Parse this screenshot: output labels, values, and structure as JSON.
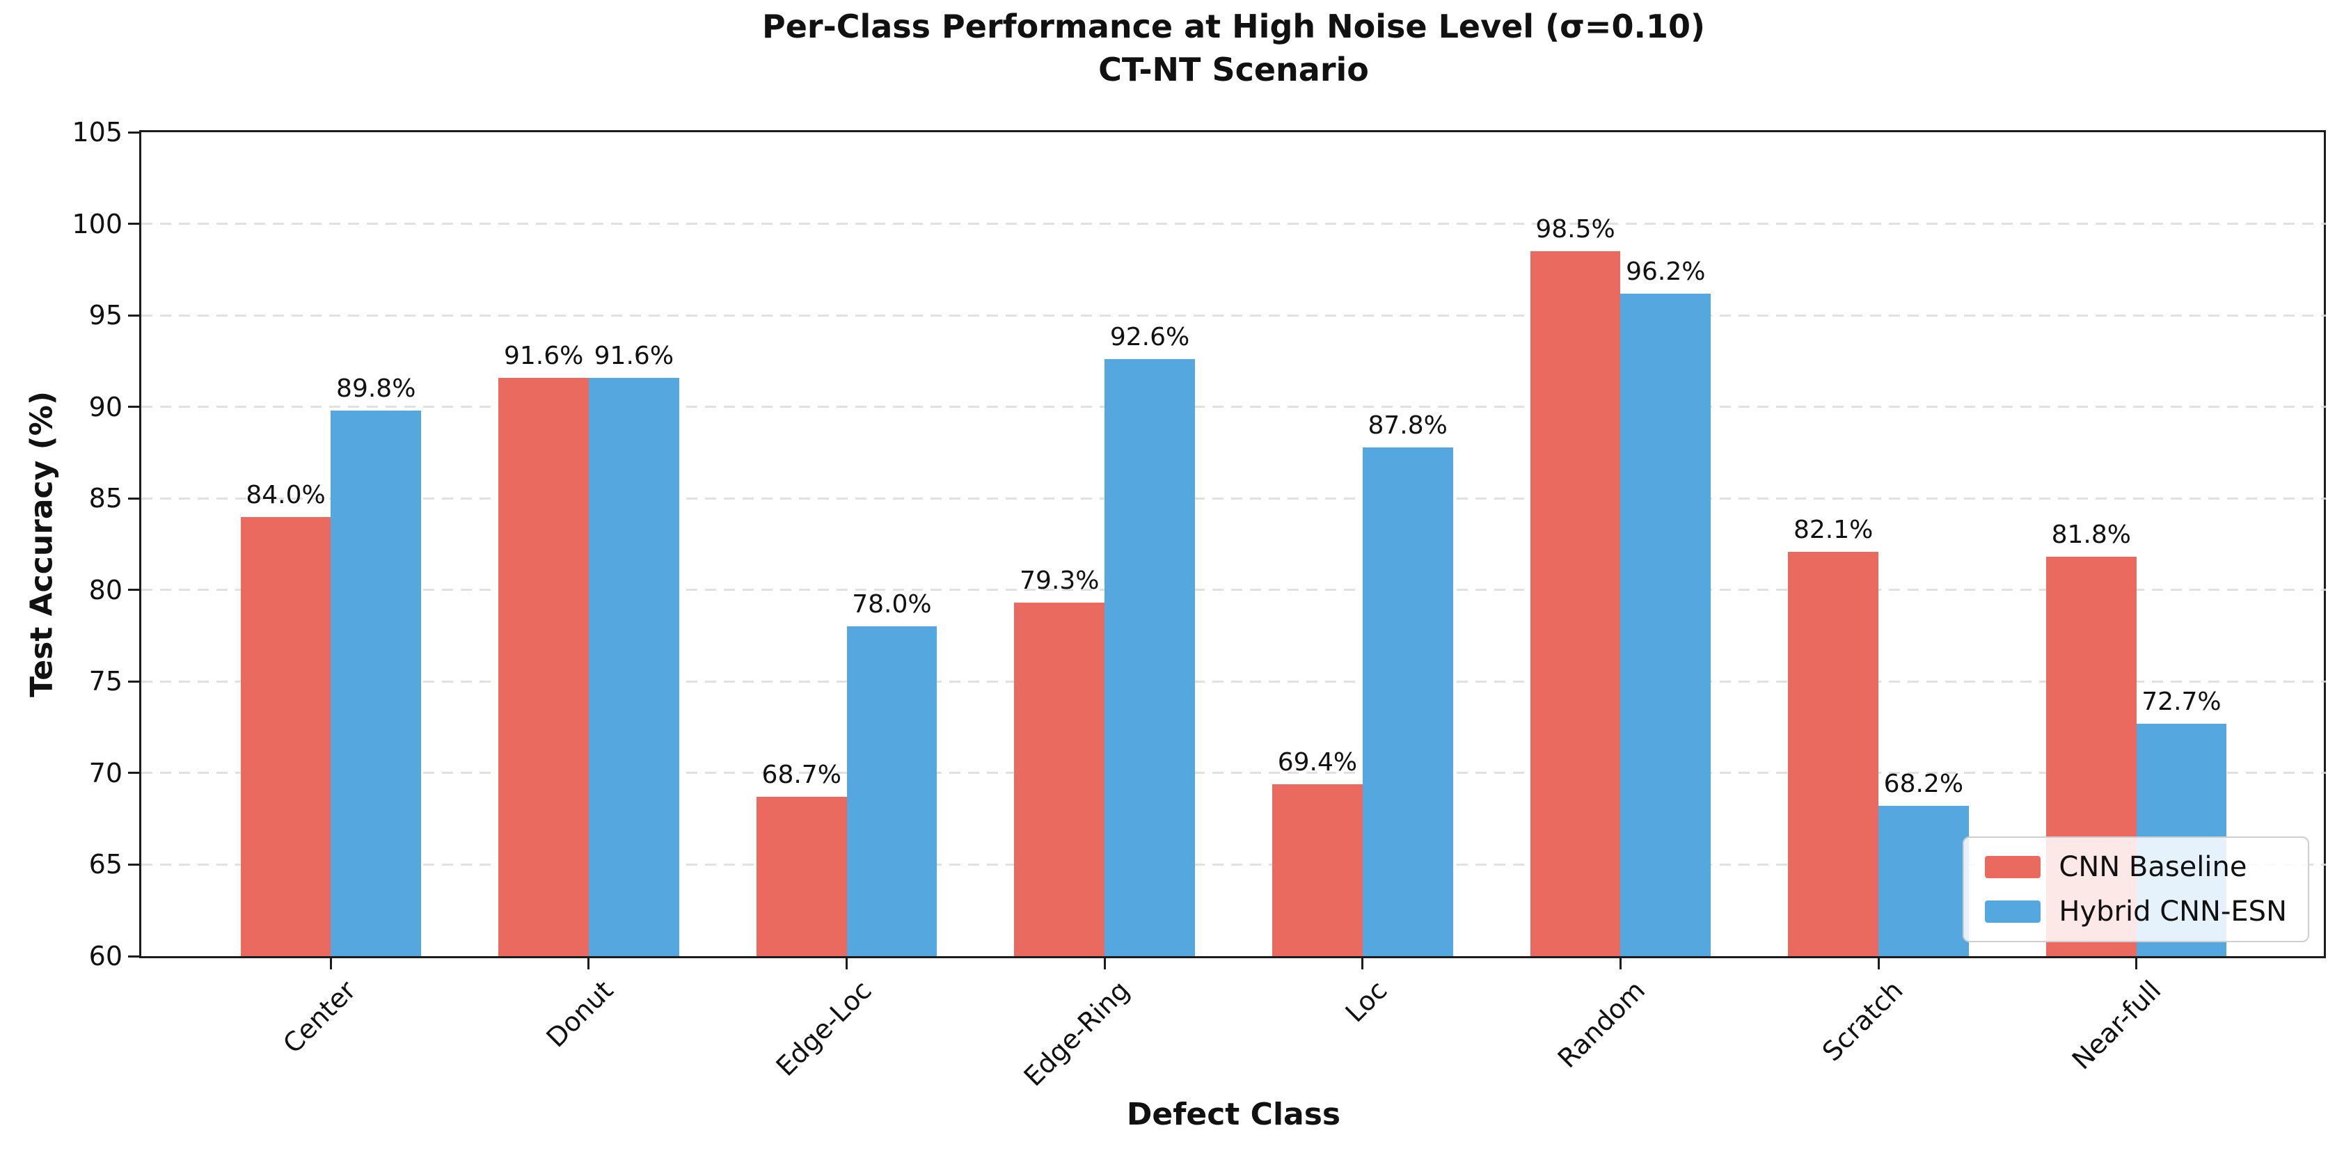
{
  "title": {
    "line1": "Per-Class Performance at High Noise Level (σ=0.10)",
    "line2": "CT-NT Scenario"
  },
  "chart_data": {
    "type": "bar",
    "categories": [
      "Center",
      "Donut",
      "Edge-Loc",
      "Edge-Ring",
      "Loc",
      "Random",
      "Scratch",
      "Near-full"
    ],
    "series": [
      {
        "name": "CNN Baseline",
        "color": "#EB6A60",
        "values": [
          84.0,
          91.6,
          68.7,
          79.3,
          69.4,
          98.5,
          82.1,
          81.8
        ]
      },
      {
        "name": "Hybrid CNN-ESN",
        "color": "#55A7E0",
        "values": [
          89.8,
          91.6,
          78.0,
          92.6,
          87.8,
          96.2,
          68.2,
          72.7
        ]
      }
    ],
    "value_label_suffix": "%",
    "xlabel": "Defect Class",
    "ylabel": "Test Accuracy (%)",
    "ylim": [
      60,
      105
    ],
    "ytick_step": 5,
    "yticks": [
      60,
      65,
      70,
      75,
      80,
      85,
      90,
      95,
      100,
      105
    ],
    "grid": "horizontal-dashed",
    "legend_position": "lower-right",
    "bar_group_width": 0.35,
    "spine_color": "#1c1c1c",
    "grid_color": "#dcdcdc"
  }
}
